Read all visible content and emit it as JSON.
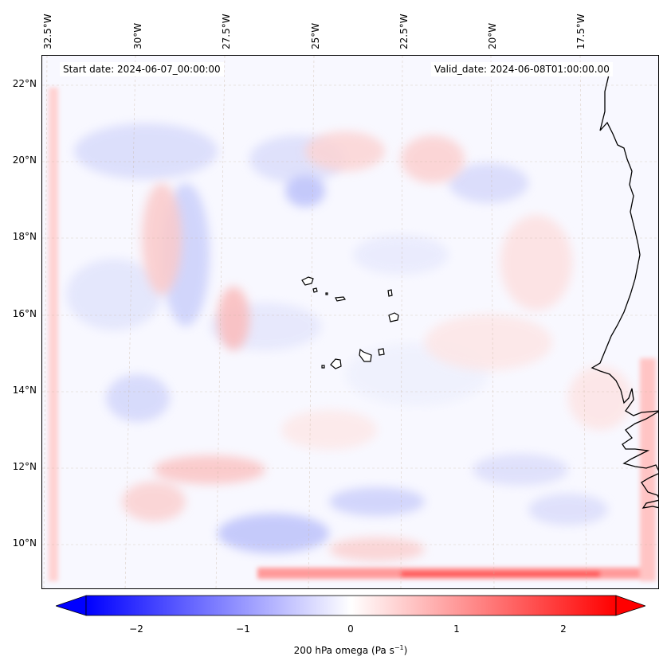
{
  "header": {
    "start_date": "Start date: 2024-06-07_00:00:00",
    "valid_date": "Valid_date: 2024-06-08T01:00:00.00"
  },
  "map": {
    "longitude_labels": [
      "32.5°W",
      "30°W",
      "27.5°W",
      "25°W",
      "22.5°W",
      "20°W",
      "17.5°W"
    ],
    "latitude_labels": [
      "22°N",
      "20°N",
      "18°N",
      "16°N",
      "14°N",
      "12°N",
      "10°N"
    ],
    "field": "200 hPa omega",
    "colormap": "bwr",
    "colors": {
      "negative": "#0000ff",
      "zero": "#ffffff",
      "positive": "#ff0000",
      "coastline": "#000000",
      "gridline": "#c8b4a0"
    }
  },
  "colorbar": {
    "label_prefix": "200 hPa omega (Pa s",
    "label_exp": "−1",
    "label_suffix": ")",
    "ticks": [
      "−2",
      "−1",
      "0",
      "1",
      "2"
    ],
    "range": [
      -2.7,
      2.7
    ],
    "extend": "both"
  }
}
